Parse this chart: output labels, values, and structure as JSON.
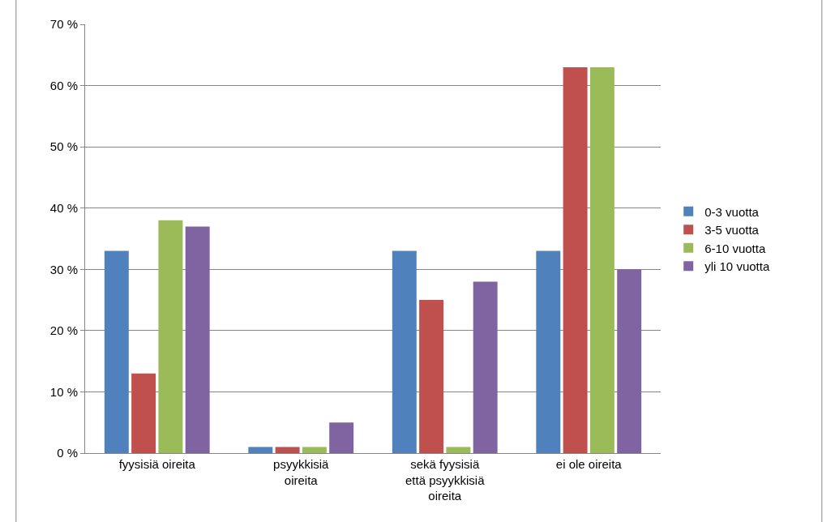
{
  "chart_data": {
    "type": "bar",
    "categories": [
      "fyysisiä oireita",
      "psyykkisiä oireita",
      "sekä fyysisiä että psyykkisiä oireita",
      "ei ole oireita"
    ],
    "series": [
      {
        "name": "0-3 vuotta",
        "color": "#4f81bd",
        "values": [
          33,
          1,
          33,
          33
        ]
      },
      {
        "name": "3-5 vuotta",
        "color": "#c0504d",
        "values": [
          13,
          1,
          25,
          63
        ]
      },
      {
        "name": "6-10 vuotta",
        "color": "#9bbb59",
        "values": [
          38,
          1,
          1,
          63
        ]
      },
      {
        "name": "yli 10 vuotta",
        "color": "#8064a2",
        "values": [
          37,
          5,
          28,
          30
        ]
      }
    ],
    "ylim": [
      0,
      70
    ],
    "yticks": [
      {
        "value": 0,
        "label": "0 %"
      },
      {
        "value": 10,
        "label": "10 %"
      },
      {
        "value": 20,
        "label": "20 %"
      },
      {
        "value": 30,
        "label": "30 %"
      },
      {
        "value": 40,
        "label": "40 %"
      },
      {
        "value": 50,
        "label": "50 %"
      },
      {
        "value": 60,
        "label": "60 %"
      },
      {
        "value": 70,
        "label": "70 %"
      }
    ],
    "grid": "y",
    "legend": "right"
  }
}
